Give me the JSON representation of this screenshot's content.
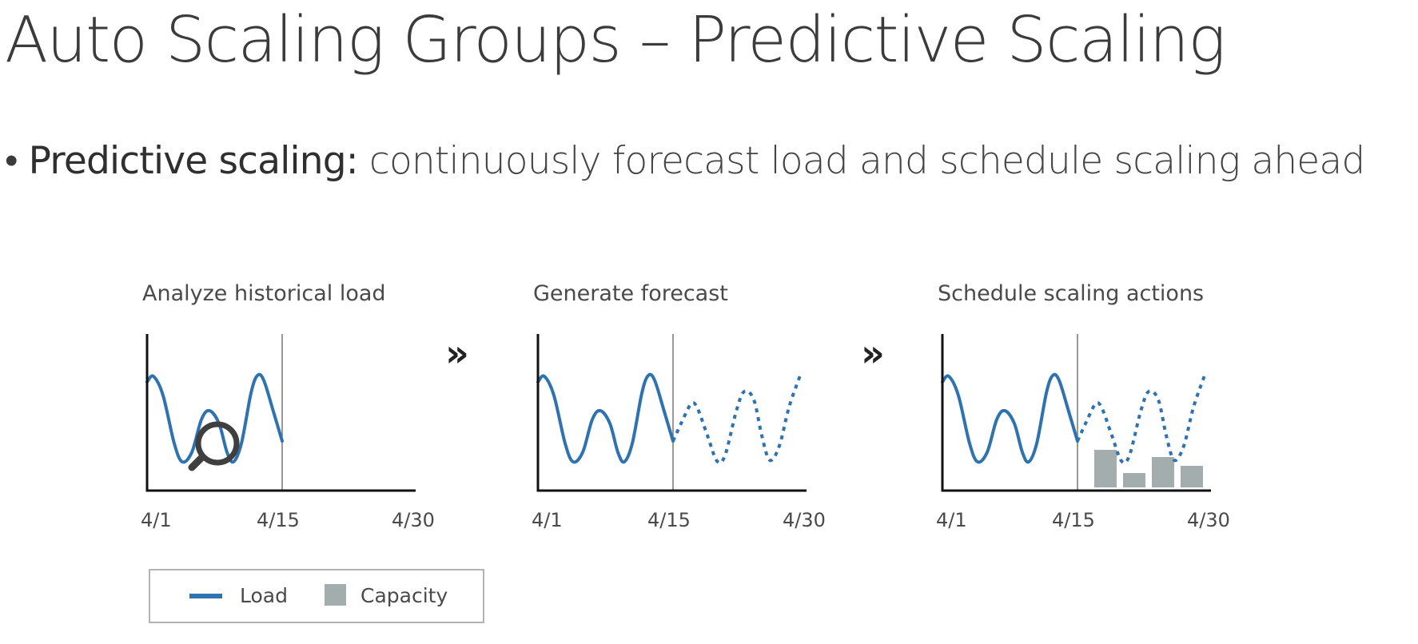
{
  "slide": {
    "title": "Auto Scaling Groups – Predictive Scaling",
    "bullet": {
      "lead": "Predictive scaling:",
      "text": "continuously forecast load and schedule scaling ahead"
    }
  },
  "diagram": {
    "arrow_glyph": "»",
    "panels": [
      {
        "title": "Analyze historical load",
        "x_ticks": [
          "4/1",
          "4/15",
          "4/30"
        ],
        "forecast": false,
        "capacity": false,
        "magnifier": true
      },
      {
        "title": "Generate forecast",
        "x_ticks": [
          "4/1",
          "4/15",
          "4/30"
        ],
        "forecast": true,
        "capacity": false,
        "magnifier": false
      },
      {
        "title": "Schedule scaling actions",
        "x_ticks": [
          "4/1",
          "4/15",
          "4/30"
        ],
        "forecast": true,
        "capacity": true,
        "magnifier": false
      }
    ],
    "capacity_levels": [
      0.78,
      0.2,
      0.6,
      0.38
    ],
    "legend": [
      {
        "label": "Load",
        "kind": "line",
        "color": "#2e73b0"
      },
      {
        "label": "Capacity",
        "kind": "box",
        "color": "#a3adad"
      }
    ],
    "colors": {
      "load": "#2e73b0",
      "capacity": "#a3adad",
      "axis": "#111111",
      "divider": "#777777",
      "magnifier": "#3f3f3f"
    }
  }
}
